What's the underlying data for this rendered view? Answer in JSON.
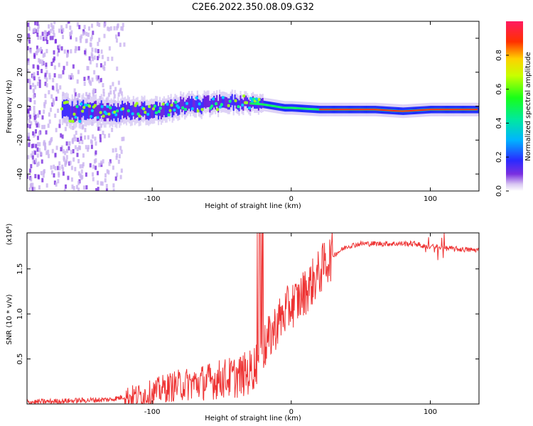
{
  "title": "C2E6.2022.350.08.09.G32",
  "chart_data": [
    {
      "type": "heatmap",
      "xlabel": "Height of straight line (km)",
      "ylabel": "Frequency (Hz)",
      "xlim": [
        -190,
        135
      ],
      "ylim": [
        -50,
        50
      ],
      "xticks": [
        -100,
        0,
        100
      ],
      "yticks": [
        -40,
        -20,
        0,
        20,
        40
      ],
      "colorbar": {
        "label": "Normalized spectral amplitude",
        "range": [
          0,
          1
        ],
        "ticks": [
          "0.0",
          "0.2",
          "0.4",
          "0.6",
          "0.8"
        ]
      },
      "band_center_freq": [
        {
          "x": -160,
          "y": -3
        },
        {
          "x": -140,
          "y": -3
        },
        {
          "x": -120,
          "y": -3
        },
        {
          "x": -100,
          "y": -3
        },
        {
          "x": -80,
          "y": 0
        },
        {
          "x": -60,
          "y": 1
        },
        {
          "x": -45,
          "y": 2
        },
        {
          "x": -35,
          "y": 2
        },
        {
          "x": -20,
          "y": 1
        },
        {
          "x": -5,
          "y": -1
        },
        {
          "x": 0,
          "y": -1
        },
        {
          "x": 20,
          "y": -2
        },
        {
          "x": 40,
          "y": -2
        },
        {
          "x": 60,
          "y": -2
        },
        {
          "x": 80,
          "y": -3
        },
        {
          "x": 100,
          "y": -2
        },
        {
          "x": 120,
          "y": -2
        },
        {
          "x": 135,
          "y": -2
        }
      ],
      "grid": false
    },
    {
      "type": "line",
      "xlabel": "Height of straight line (km)",
      "ylabel": "SNR (10 * v/v)",
      "y_multiplier": "(x10⁴)",
      "xlim": [
        -190,
        135
      ],
      "ylim": [
        0,
        1.9
      ],
      "xticks": [
        -100,
        0,
        100
      ],
      "yticks": [
        0.5,
        1.0,
        1.5
      ],
      "series": [
        {
          "color": "#ee3333",
          "x": [
            -190,
            -170,
            -150,
            -130,
            -120,
            -110,
            -100,
            -90,
            -80,
            -70,
            -60,
            -50,
            -40,
            -35,
            -30,
            -25,
            -22,
            -20,
            -15,
            -10,
            -5,
            0,
            5,
            10,
            15,
            20,
            25,
            30,
            35,
            40,
            50,
            60,
            70,
            80,
            90,
            95,
            100,
            105,
            110,
            120,
            130,
            135
          ],
          "values": [
            0.02,
            0.03,
            0.04,
            0.05,
            0.08,
            0.09,
            0.12,
            0.18,
            0.21,
            0.23,
            0.25,
            0.28,
            0.3,
            0.32,
            0.35,
            0.45,
            0.6,
            0.6,
            0.75,
            0.9,
            1.0,
            1.1,
            1.15,
            1.25,
            1.35,
            1.45,
            1.58,
            1.65,
            1.7,
            1.75,
            1.78,
            1.78,
            1.78,
            1.78,
            1.78,
            1.75,
            1.75,
            1.74,
            1.73,
            1.72,
            1.71,
            1.71
          ]
        }
      ],
      "grid": false
    }
  ]
}
